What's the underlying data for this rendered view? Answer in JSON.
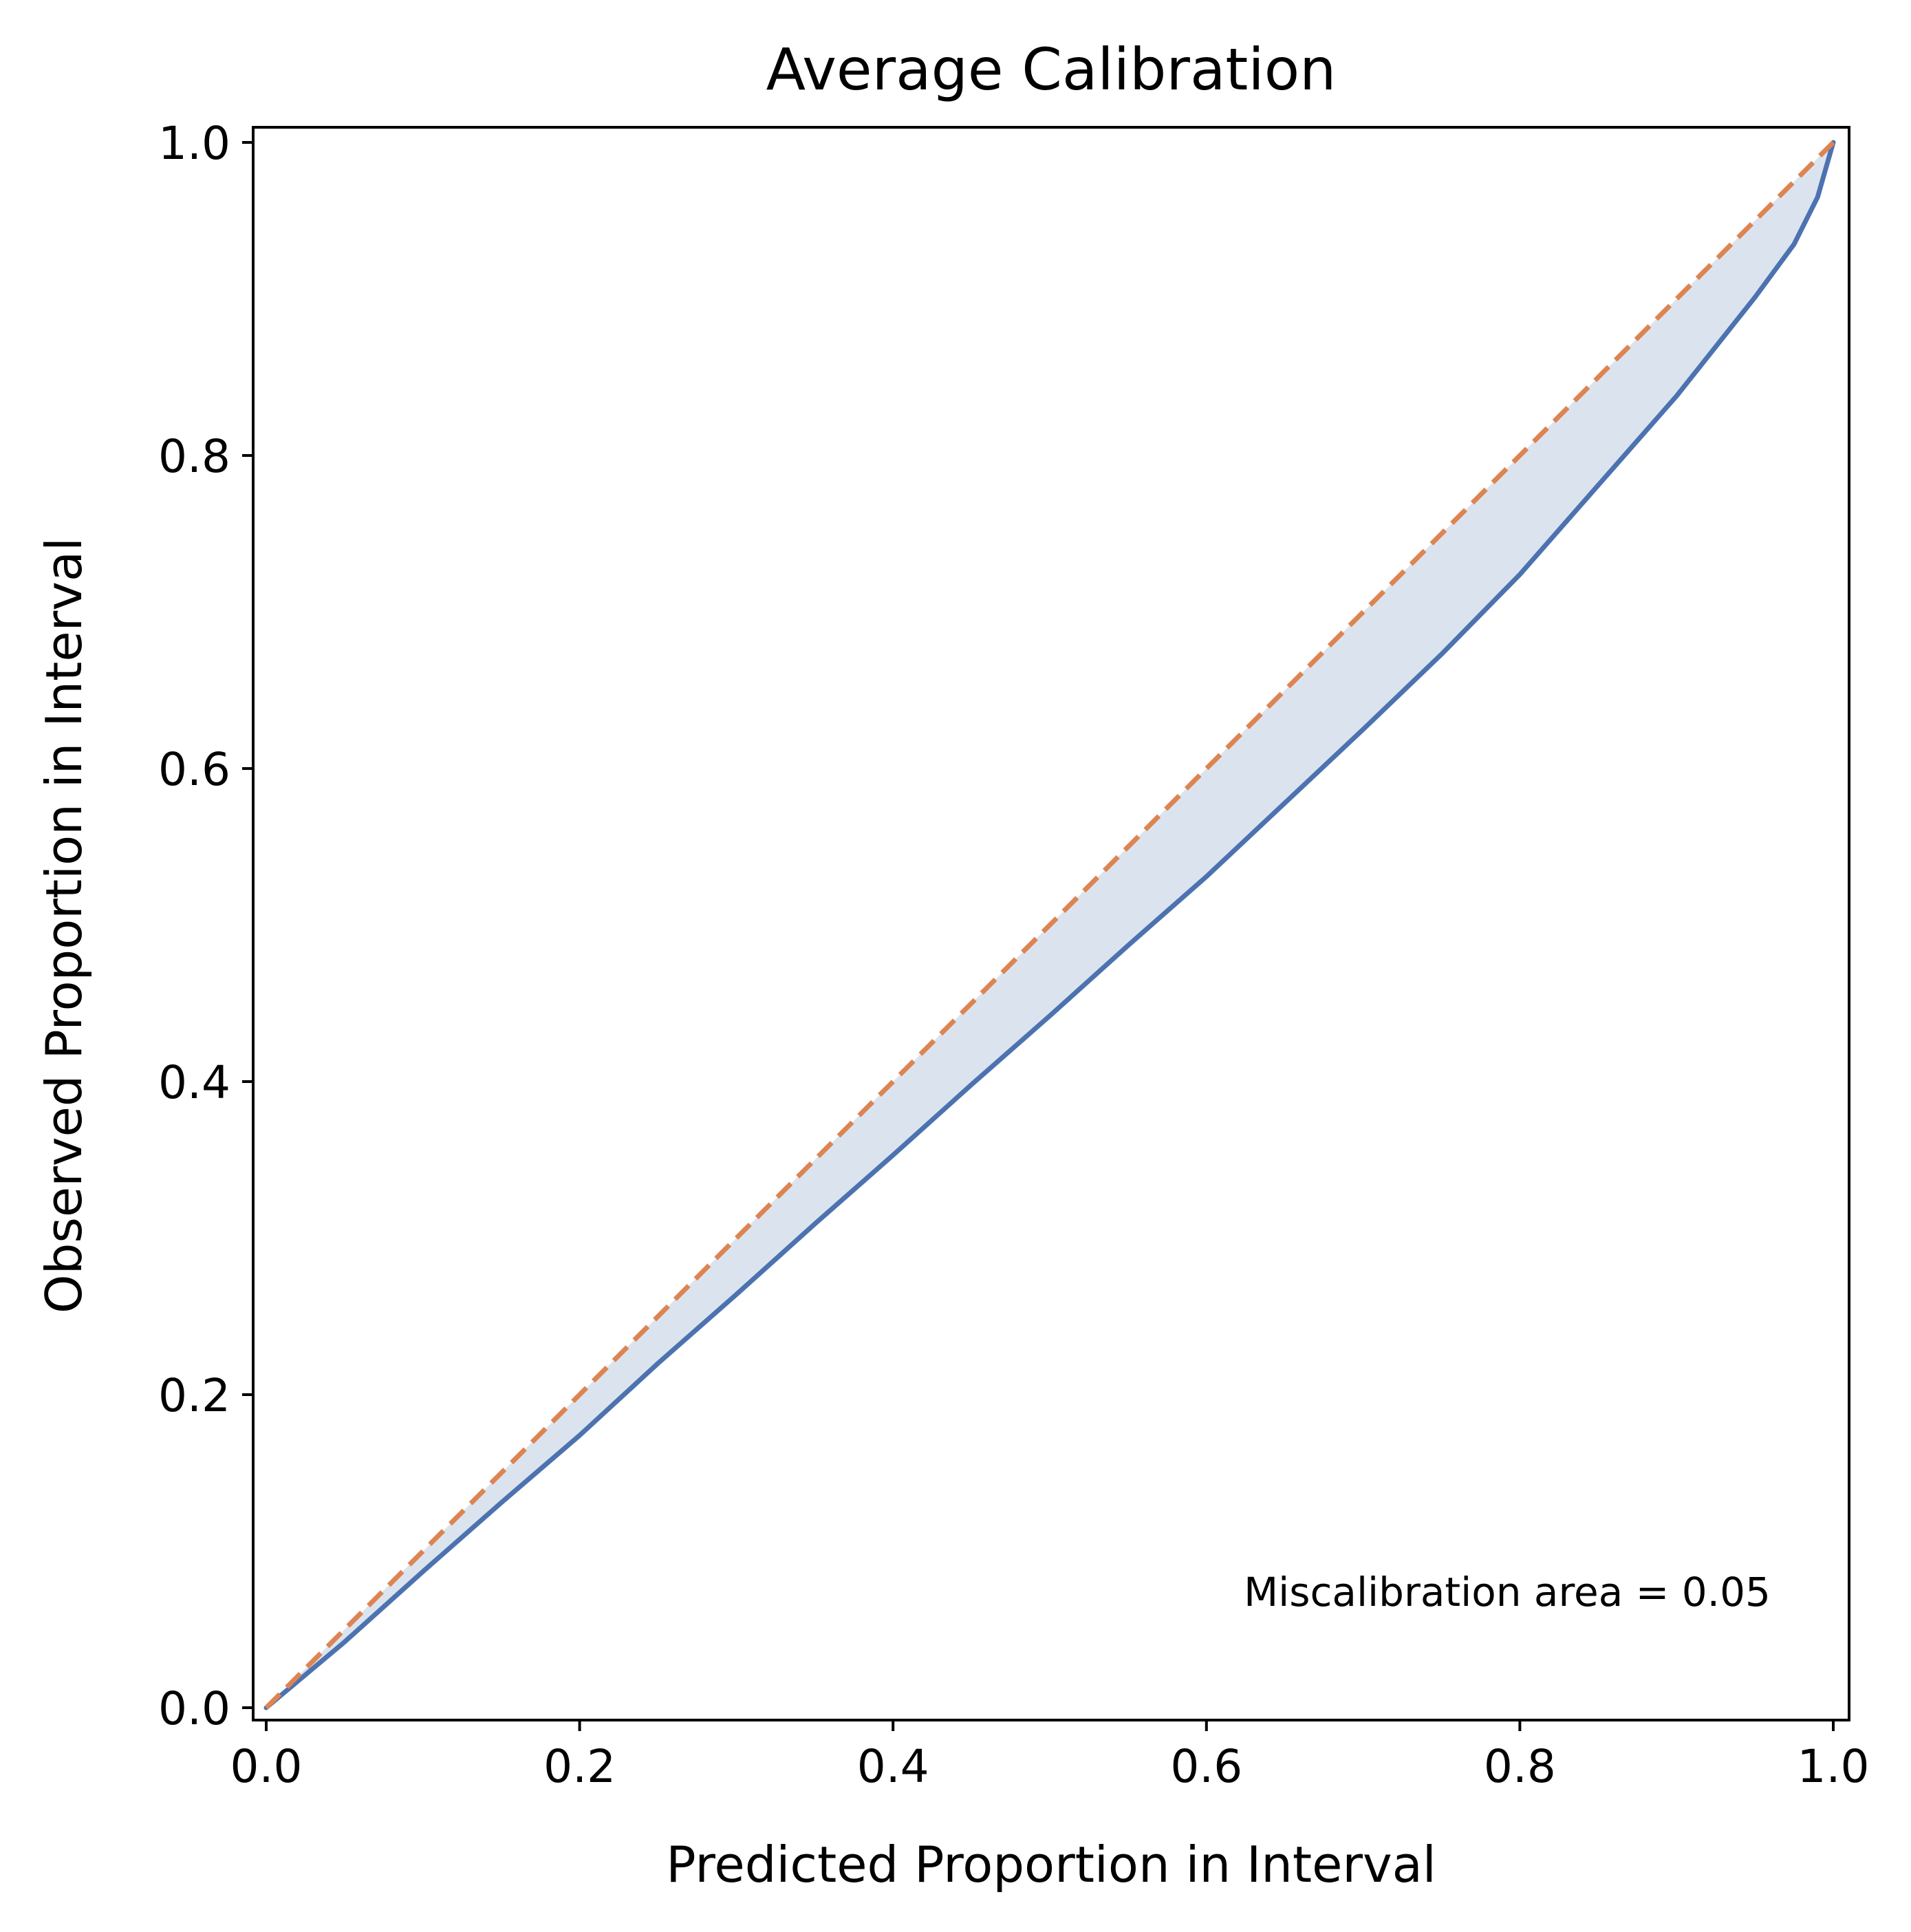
{
  "chart_data": {
    "type": "line",
    "title": "Average Calibration",
    "xlabel": "Predicted Proportion in Interval",
    "ylabel": "Observed Proportion in Interval",
    "xlim": [
      0.0,
      1.0
    ],
    "ylim": [
      0.0,
      1.0
    ],
    "x_ticks": [
      {
        "value": 0.0,
        "label": "0.0"
      },
      {
        "value": 0.2,
        "label": "0.2"
      },
      {
        "value": 0.4,
        "label": "0.4"
      },
      {
        "value": 0.6,
        "label": "0.6"
      },
      {
        "value": 0.8,
        "label": "0.8"
      },
      {
        "value": 1.0,
        "label": "1.0"
      }
    ],
    "y_ticks": [
      {
        "value": 0.0,
        "label": "0.0"
      },
      {
        "value": 0.2,
        "label": "0.2"
      },
      {
        "value": 0.4,
        "label": "0.4"
      },
      {
        "value": 0.6,
        "label": "0.6"
      },
      {
        "value": 0.8,
        "label": "0.8"
      },
      {
        "value": 1.0,
        "label": "1.0"
      }
    ],
    "grid": false,
    "legend": "none",
    "series": [
      {
        "role": "observed",
        "color": "#4c72b0",
        "style": "solid",
        "x": [
          0.0,
          0.05,
          0.1,
          0.15,
          0.2,
          0.25,
          0.3,
          0.35,
          0.4,
          0.45,
          0.5,
          0.55,
          0.6,
          0.65,
          0.7,
          0.75,
          0.8,
          0.85,
          0.9,
          0.95,
          0.975,
          0.99,
          1.0
        ],
        "y": [
          0.0,
          0.042,
          0.087,
          0.131,
          0.174,
          0.22,
          0.264,
          0.309,
          0.353,
          0.398,
          0.442,
          0.487,
          0.531,
          0.578,
          0.625,
          0.673,
          0.724,
          0.781,
          0.838,
          0.901,
          0.935,
          0.965,
          1.0
        ]
      },
      {
        "role": "ideal",
        "color": "#dd8452",
        "style": "dashed",
        "x": [
          0.0,
          1.0
        ],
        "y": [
          0.0,
          1.0
        ]
      }
    ],
    "fill_between": {
      "color": "#dbe4ee",
      "between": [
        "ideal",
        "observed"
      ]
    },
    "annotations": [
      {
        "text": "Miscalibration area = 0.05",
        "x": 0.96,
        "y": 0.065,
        "align": "right"
      }
    ]
  }
}
